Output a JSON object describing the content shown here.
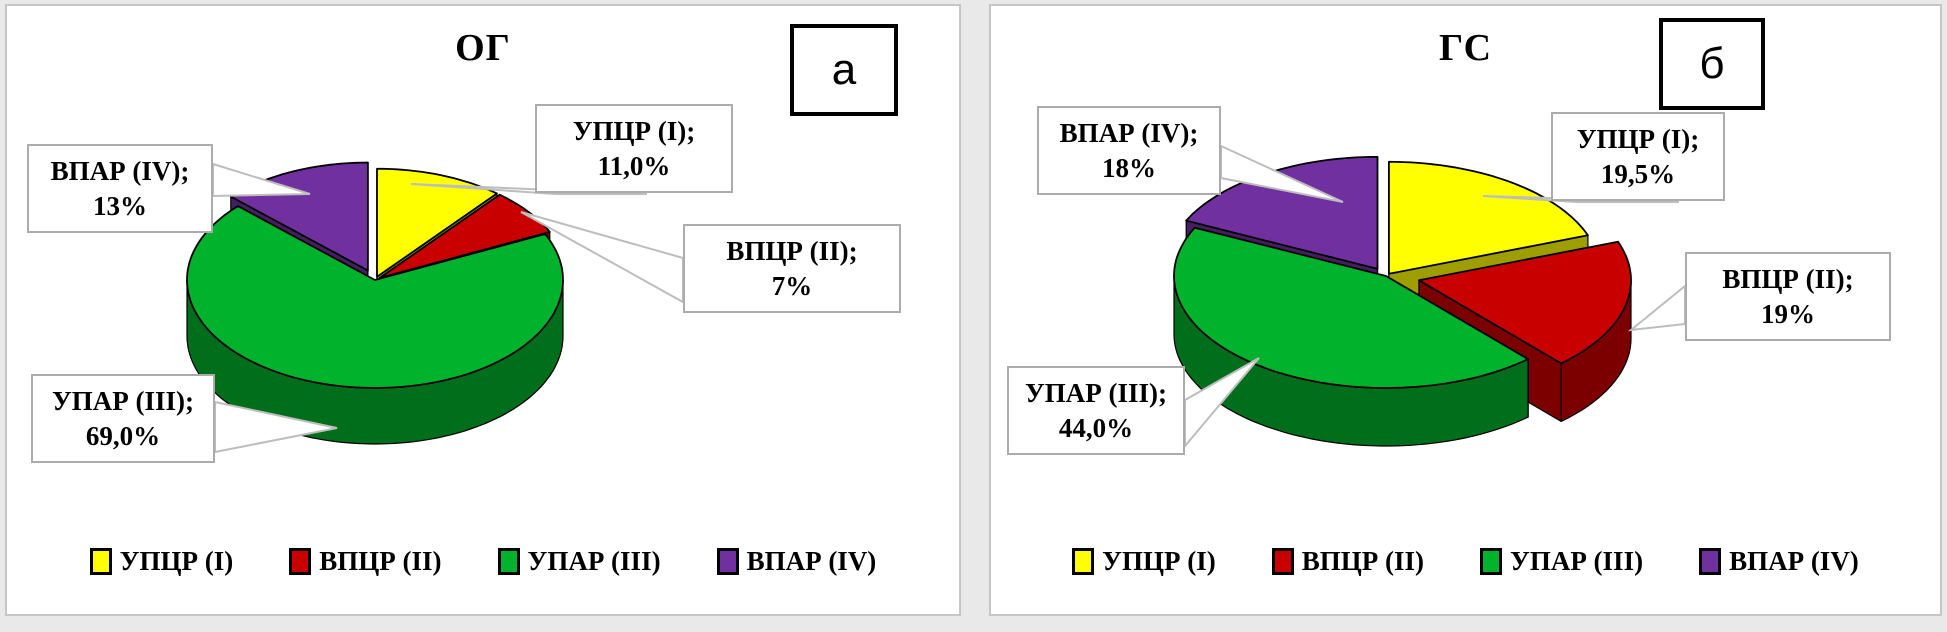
{
  "figure": {
    "panels": [
      {
        "title": "ОГ",
        "corner_letter": "а"
      },
      {
        "title": "ГС",
        "corner_letter": "б"
      }
    ]
  },
  "chart_data": [
    {
      "type": "pie",
      "style": "3d-exploded",
      "title": "ОГ",
      "labels": [
        "УПЦР (I)",
        "ВПЦР (II)",
        "УПАР (III)",
        "ВПАР (IV)"
      ],
      "values": [
        11.0,
        7,
        69.0,
        13
      ],
      "value_labels": [
        "11,0%",
        "7%",
        "69,0%",
        "13%"
      ],
      "callouts": [
        {
          "name": "УПЦР (I);",
          "value": "11,0%"
        },
        {
          "name": "ВПЦР (II);",
          "value": "7%"
        },
        {
          "name": "УПАР (III);",
          "value": "69,0%"
        },
        {
          "name": "ВПАР (IV);",
          "value": "13%"
        }
      ],
      "colors": [
        "#FFFF00",
        "#C90000",
        "#00B22C",
        "#7030A0"
      ],
      "legend_position": "bottom",
      "start_angle_deg": -90,
      "direction": "clockwise"
    },
    {
      "type": "pie",
      "style": "3d-exploded",
      "title": "ГС",
      "labels": [
        "УПЦР (I)",
        "ВПЦР (II)",
        "УПАР (III)",
        "ВПАР (IV)"
      ],
      "values": [
        19.5,
        19,
        44.0,
        18
      ],
      "value_labels": [
        "19,5%",
        "19%",
        "44,0%",
        "18%"
      ],
      "callouts": [
        {
          "name": "УПЦР (I);",
          "value": "19,5%"
        },
        {
          "name": "ВПЦР (II);",
          "value": "19%"
        },
        {
          "name": "УПАР (III);",
          "value": "44,0%"
        },
        {
          "name": "ВПАР (IV);",
          "value": "18%"
        }
      ],
      "colors": [
        "#FFFF00",
        "#C90000",
        "#00B22C",
        "#7030A0"
      ],
      "legend_position": "bottom",
      "start_angle_deg": -90,
      "direction": "clockwise"
    }
  ]
}
